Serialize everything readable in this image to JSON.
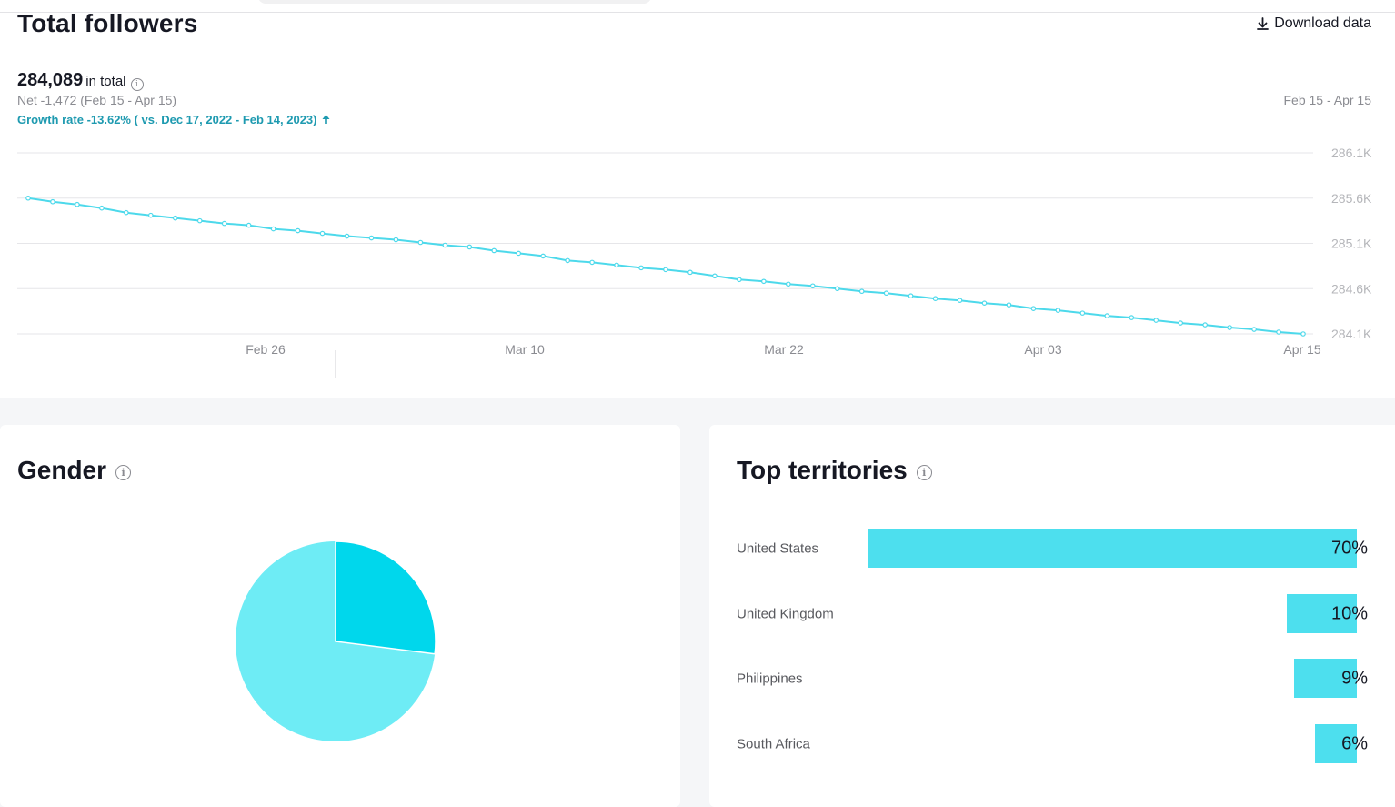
{
  "header": {
    "title": "Total followers",
    "download_label": "Download data"
  },
  "summary": {
    "total": "284,089",
    "total_suffix": "in total",
    "net": "Net -1,472 (Feb 15 - Apr 15)",
    "growth": "Growth rate -13.62% ( vs. Dec 17, 2022 - Feb 14, 2023)",
    "range": "Feb 15 - Apr 15"
  },
  "colors": {
    "line": "#4dd9eb",
    "bar": "#4ddfee",
    "pie_primary": "#6eecf5",
    "pie_secondary": "#00d7ec",
    "growth_text": "#1e9ab0"
  },
  "gender": {
    "title": "Gender",
    "info_icon": "info-icon"
  },
  "territories": {
    "title": "Top territories",
    "items": [
      {
        "name": "United States",
        "value_label": "70%",
        "value": 70
      },
      {
        "name": "United Kingdom",
        "value_label": "10%",
        "value": 10
      },
      {
        "name": "Philippines",
        "value_label": "9%",
        "value": 9
      },
      {
        "name": "South Africa",
        "value_label": "6%",
        "value": 6
      }
    ]
  },
  "chart_data": [
    {
      "type": "line",
      "title": "Total followers",
      "x_tick_labels": [
        "Feb 26",
        "Mar 10",
        "Mar 22",
        "Apr 03",
        "Apr 15"
      ],
      "y_tick_labels": [
        "286.1K",
        "285.6K",
        "285.1K",
        "284.6K",
        "284.1K"
      ],
      "y_ticks": [
        286100,
        285600,
        285100,
        284600,
        284100
      ],
      "ylim": [
        284100,
        286100
      ],
      "grid": true,
      "x_range": [
        "Feb 15",
        "Apr 15"
      ],
      "series": [
        {
          "values": [
            285600,
            285560,
            285530,
            285490,
            285440,
            285410,
            285380,
            285350,
            285320,
            285300,
            285260,
            285240,
            285210,
            285180,
            285160,
            285140,
            285110,
            285080,
            285060,
            285020,
            284990,
            284960,
            284910,
            284890,
            284860,
            284830,
            284810,
            284780,
            284740,
            284700,
            284680,
            284650,
            284630,
            284600,
            284570,
            284550,
            284520,
            284490,
            284470,
            284440,
            284420,
            284380,
            284360,
            284330,
            284300,
            284280,
            284250,
            284220,
            284200,
            284170,
            284150,
            284120,
            284100
          ]
        }
      ]
    },
    {
      "type": "pie",
      "title": "Gender",
      "values": [
        73,
        27
      ]
    },
    {
      "type": "bar",
      "title": "Top territories",
      "categories": [
        "United States",
        "United Kingdom",
        "Philippines",
        "South Africa"
      ],
      "values": [
        70,
        10,
        9,
        6
      ]
    }
  ]
}
